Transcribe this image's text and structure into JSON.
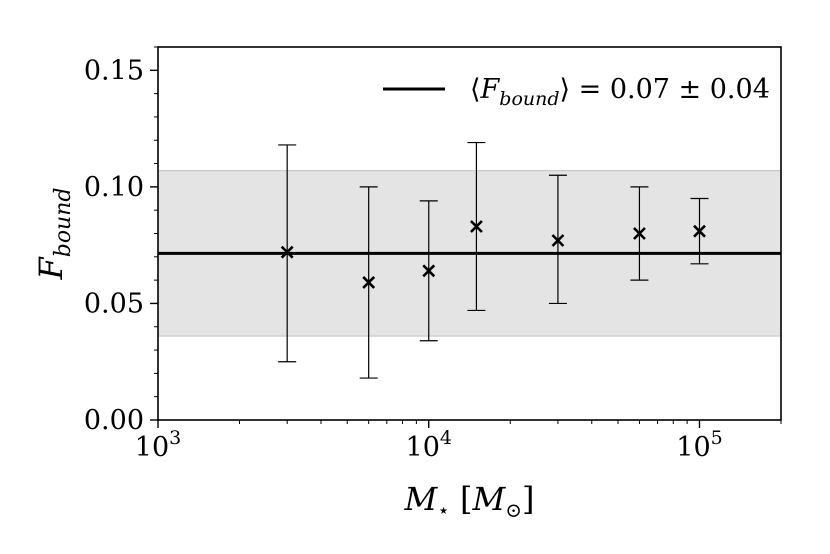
{
  "chart_data": {
    "type": "scatter",
    "x_scale": "log",
    "xlim": [
      1000,
      200000
    ],
    "ylim": [
      0,
      0.16
    ],
    "xlabel": "M⋆ [M⊙]",
    "ylabel": "F_bound",
    "x_ticks": [
      {
        "value": 1000,
        "base": "10",
        "exp": "3"
      },
      {
        "value": 10000,
        "base": "10",
        "exp": "4"
      },
      {
        "value": 100000,
        "base": "10",
        "exp": "5"
      }
    ],
    "y_ticks": [
      {
        "value": 0.0,
        "label": "0.00"
      },
      {
        "value": 0.05,
        "label": "0.05"
      },
      {
        "value": 0.1,
        "label": "0.10"
      },
      {
        "value": 0.15,
        "label": "0.15"
      }
    ],
    "series": [
      {
        "marker": "x",
        "color": "#000000",
        "points": [
          {
            "x": 3000,
            "y": 0.072,
            "lo": 0.025,
            "hi": 0.118
          },
          {
            "x": 6000,
            "y": 0.059,
            "lo": 0.018,
            "hi": 0.1
          },
          {
            "x": 10000,
            "y": 0.064,
            "lo": 0.034,
            "hi": 0.094
          },
          {
            "x": 15000,
            "y": 0.083,
            "lo": 0.047,
            "hi": 0.119
          },
          {
            "x": 30000,
            "y": 0.077,
            "lo": 0.05,
            "hi": 0.105
          },
          {
            "x": 60000,
            "y": 0.08,
            "lo": 0.06,
            "hi": 0.1
          },
          {
            "x": 100000,
            "y": 0.081,
            "lo": 0.067,
            "hi": 0.095
          }
        ]
      }
    ],
    "mean_line": {
      "value": 0.0715,
      "band": [
        0.036,
        0.107
      ],
      "band_color": "#e4e4e4",
      "label": "⟨F_bound⟩ = 0.07 ± 0.04",
      "legend_position": "top-right"
    },
    "grid": false
  }
}
